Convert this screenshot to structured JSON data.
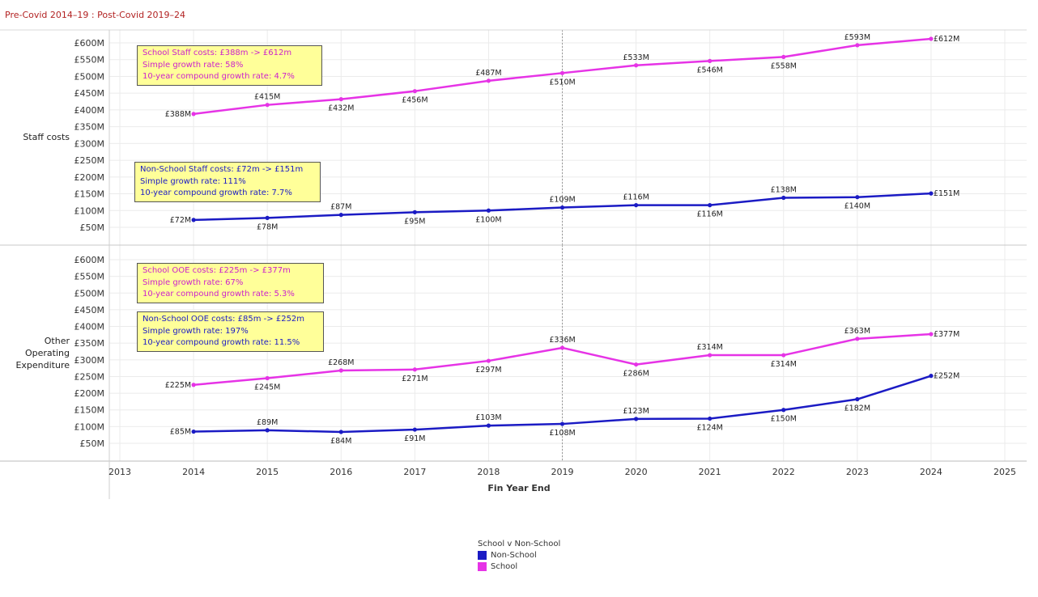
{
  "page": {
    "title": "Pre-Covid 2014–19 : Post-Covid 2019–24"
  },
  "colors": {
    "school": "#e633e6",
    "non_school": "#1b1bc4"
  },
  "chart_data": {
    "type": "line",
    "x_title": "Fin Year End",
    "x_ticks": [
      2013,
      2014,
      2015,
      2016,
      2017,
      2018,
      2019,
      2020,
      2021,
      2022,
      2023,
      2024,
      2025
    ],
    "x_range": [
      2013,
      2025
    ],
    "reference_line_x": 2019,
    "grid": true,
    "legend": {
      "title": "School v Non-School",
      "position": "bottom-center",
      "items": [
        {
          "label": "Non-School",
          "color": "#1b1bc4"
        },
        {
          "label": "School",
          "color": "#e633e6"
        }
      ]
    },
    "panes": [
      {
        "id": "staff",
        "row_label": [
          "Staff costs"
        ],
        "y_range": [
          0,
          625
        ],
        "y_ticks": [
          50,
          100,
          150,
          200,
          250,
          300,
          350,
          400,
          450,
          500,
          550,
          600
        ],
        "y_tick_labels": [
          "£50M",
          "£100M",
          "£150M",
          "£200M",
          "£250M",
          "£300M",
          "£350M",
          "£400M",
          "£450M",
          "£500M",
          "£550M",
          "£600M"
        ],
        "series": [
          {
            "name": "School",
            "color": "#e633e6",
            "x": [
              2014,
              2015,
              2016,
              2017,
              2018,
              2019,
              2020,
              2021,
              2022,
              2023,
              2024
            ],
            "y": [
              388,
              415,
              432,
              456,
              487,
              510,
              533,
              546,
              558,
              593,
              612
            ],
            "labels": [
              "£388M",
              "£415M",
              "£432M",
              "£456M",
              "£487M",
              "£510M",
              "£533M",
              "£546M",
              "£558M",
              "£593M",
              "£612M"
            ],
            "label_pos": [
              "left",
              "above",
              "below",
              "below",
              "above",
              "below",
              "above",
              "below",
              "below",
              "above",
              "right"
            ]
          },
          {
            "name": "Non-School",
            "color": "#1b1bc4",
            "x": [
              2014,
              2015,
              2016,
              2017,
              2018,
              2019,
              2020,
              2021,
              2022,
              2023,
              2024
            ],
            "y": [
              72,
              78,
              87,
              95,
              100,
              109,
              116,
              116,
              138,
              140,
              151
            ],
            "labels": [
              "£72M",
              "£78M",
              "£87M",
              "£95M",
              "£100M",
              "£109M",
              "£116M",
              "£116M",
              "£138M",
              "£140M",
              "£151M"
            ],
            "label_pos": [
              "left",
              "below",
              "above",
              "below",
              "below",
              "above",
              "above",
              "below",
              "above",
              "below",
              "right"
            ]
          }
        ],
        "annotations": [
          {
            "color": "#cc22cc",
            "lines": [
              "School Staff costs:  £388m -> £612m",
              "Simple growth rate:  58%",
              "10-year compound growth rate:  4.7%"
            ]
          },
          {
            "color": "#1b1bc4",
            "lines": [
              "Non-School Staff costs:  £72m -> £151m",
              "Simple growth rate:  111%",
              "10-year compound growth rate:  7.7%"
            ]
          }
        ]
      },
      {
        "id": "ooe",
        "row_label": [
          "Other",
          "Operating",
          "Expenditure"
        ],
        "y_range": [
          0,
          625
        ],
        "y_ticks": [
          50,
          100,
          150,
          200,
          250,
          300,
          350,
          400,
          450,
          500,
          550,
          600
        ],
        "y_tick_labels": [
          "£50M",
          "£100M",
          "£150M",
          "£200M",
          "£250M",
          "£300M",
          "£350M",
          "£400M",
          "£450M",
          "£500M",
          "£550M",
          "£600M"
        ],
        "series": [
          {
            "name": "School",
            "color": "#e633e6",
            "x": [
              2014,
              2015,
              2016,
              2017,
              2018,
              2019,
              2020,
              2021,
              2022,
              2023,
              2024
            ],
            "y": [
              225,
              245,
              268,
              271,
              297,
              336,
              286,
              314,
              314,
              363,
              377
            ],
            "labels": [
              "£225M",
              "£245M",
              "£268M",
              "£271M",
              "£297M",
              "£336M",
              "£286M",
              "£314M",
              "£314M",
              "£363M",
              "£377M"
            ],
            "label_pos": [
              "left",
              "below",
              "above",
              "below",
              "below",
              "above",
              "below",
              "above",
              "below",
              "above",
              "right"
            ]
          },
          {
            "name": "Non-School",
            "color": "#1b1bc4",
            "x": [
              2014,
              2015,
              2016,
              2017,
              2018,
              2019,
              2020,
              2021,
              2022,
              2023,
              2024
            ],
            "y": [
              85,
              89,
              84,
              91,
              103,
              108,
              123,
              124,
              150,
              182,
              252
            ],
            "labels": [
              "£85M",
              "£89M",
              "£84M",
              "£91M",
              "£103M",
              "£108M",
              "£123M",
              "£124M",
              "£150M",
              "£182M",
              "£252M"
            ],
            "label_pos": [
              "left",
              "above",
              "below",
              "below",
              "above",
              "below",
              "above",
              "below",
              "below",
              "below",
              "right"
            ]
          }
        ],
        "annotations": [
          {
            "color": "#cc22cc",
            "lines": [
              "School OOE costs:  £225m -> £377m",
              "Simple growth rate:  67%",
              "10-year compound growth rate:  5.3%"
            ]
          },
          {
            "color": "#1b1bc4",
            "lines": [
              "Non-School OOE costs:  £85m -> £252m",
              "Simple growth rate:  197%",
              "10-year compound growth rate:  11.5%"
            ]
          }
        ]
      }
    ]
  }
}
